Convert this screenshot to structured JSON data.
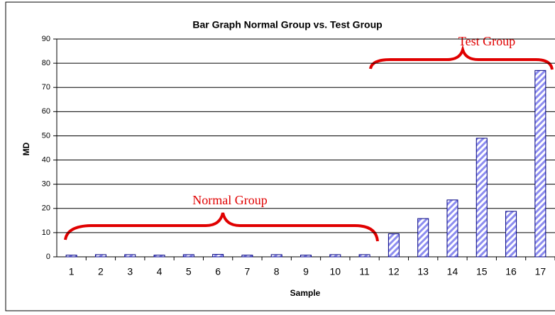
{
  "chart_data": {
    "type": "bar",
    "title": "Bar Graph Normal Group vs. Test Group",
    "x_label": "Sample",
    "y_label": "MD",
    "categories": [
      "1",
      "2",
      "3",
      "4",
      "5",
      "6",
      "7",
      "8",
      "9",
      "10",
      "11",
      "12",
      "13",
      "14",
      "15",
      "16",
      "17"
    ],
    "values": [
      0.7,
      0.9,
      0.9,
      0.7,
      0.9,
      1.0,
      0.7,
      0.9,
      0.7,
      0.9,
      0.9,
      9.5,
      15.8,
      23.5,
      49,
      18.8,
      77
    ],
    "color": "#8c8cf0",
    "ylim": [
      0,
      90
    ],
    "yticks": [
      0,
      10,
      20,
      30,
      40,
      50,
      60,
      70,
      80,
      90
    ],
    "grid": true,
    "annotations": [
      "Normal Group",
      "Test Group"
    ]
  }
}
